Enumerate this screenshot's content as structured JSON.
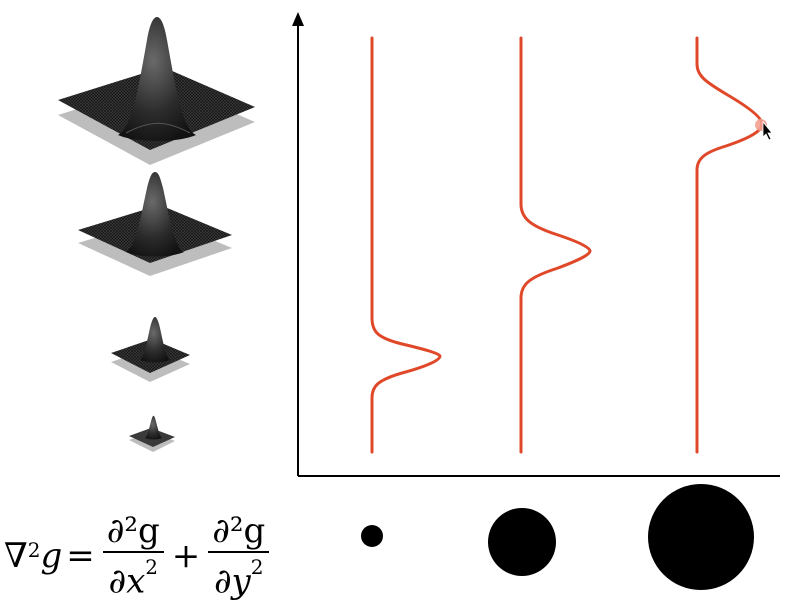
{
  "formula": {
    "lhs_nabla": "∇",
    "lhs_exp": "2",
    "lhs_g": "g",
    "equals": "=",
    "term1_num": "∂²g",
    "term1_den_var": "∂x",
    "term1_den_exp": "2",
    "plus": "+",
    "term2_num": "∂²g",
    "term2_den_var": "∂y",
    "term2_den_exp": "2"
  },
  "colors": {
    "curve": "#e0482a",
    "axes": "#000000",
    "surface": "#2a2a2a",
    "plane": "#bdbdbd",
    "disk": "#000000"
  },
  "icons": [
    "mouse-cursor-icon"
  ],
  "diagram": {
    "scales": [
      {
        "name": "small",
        "peak_fraction": 0.22,
        "disk_radius_fraction": 0.25
      },
      {
        "name": "medium",
        "peak_fraction": 0.5,
        "disk_radius_fraction": 0.62
      },
      {
        "name": "large",
        "peak_fraction": 0.82,
        "disk_radius_fraction": 1.0
      }
    ]
  }
}
